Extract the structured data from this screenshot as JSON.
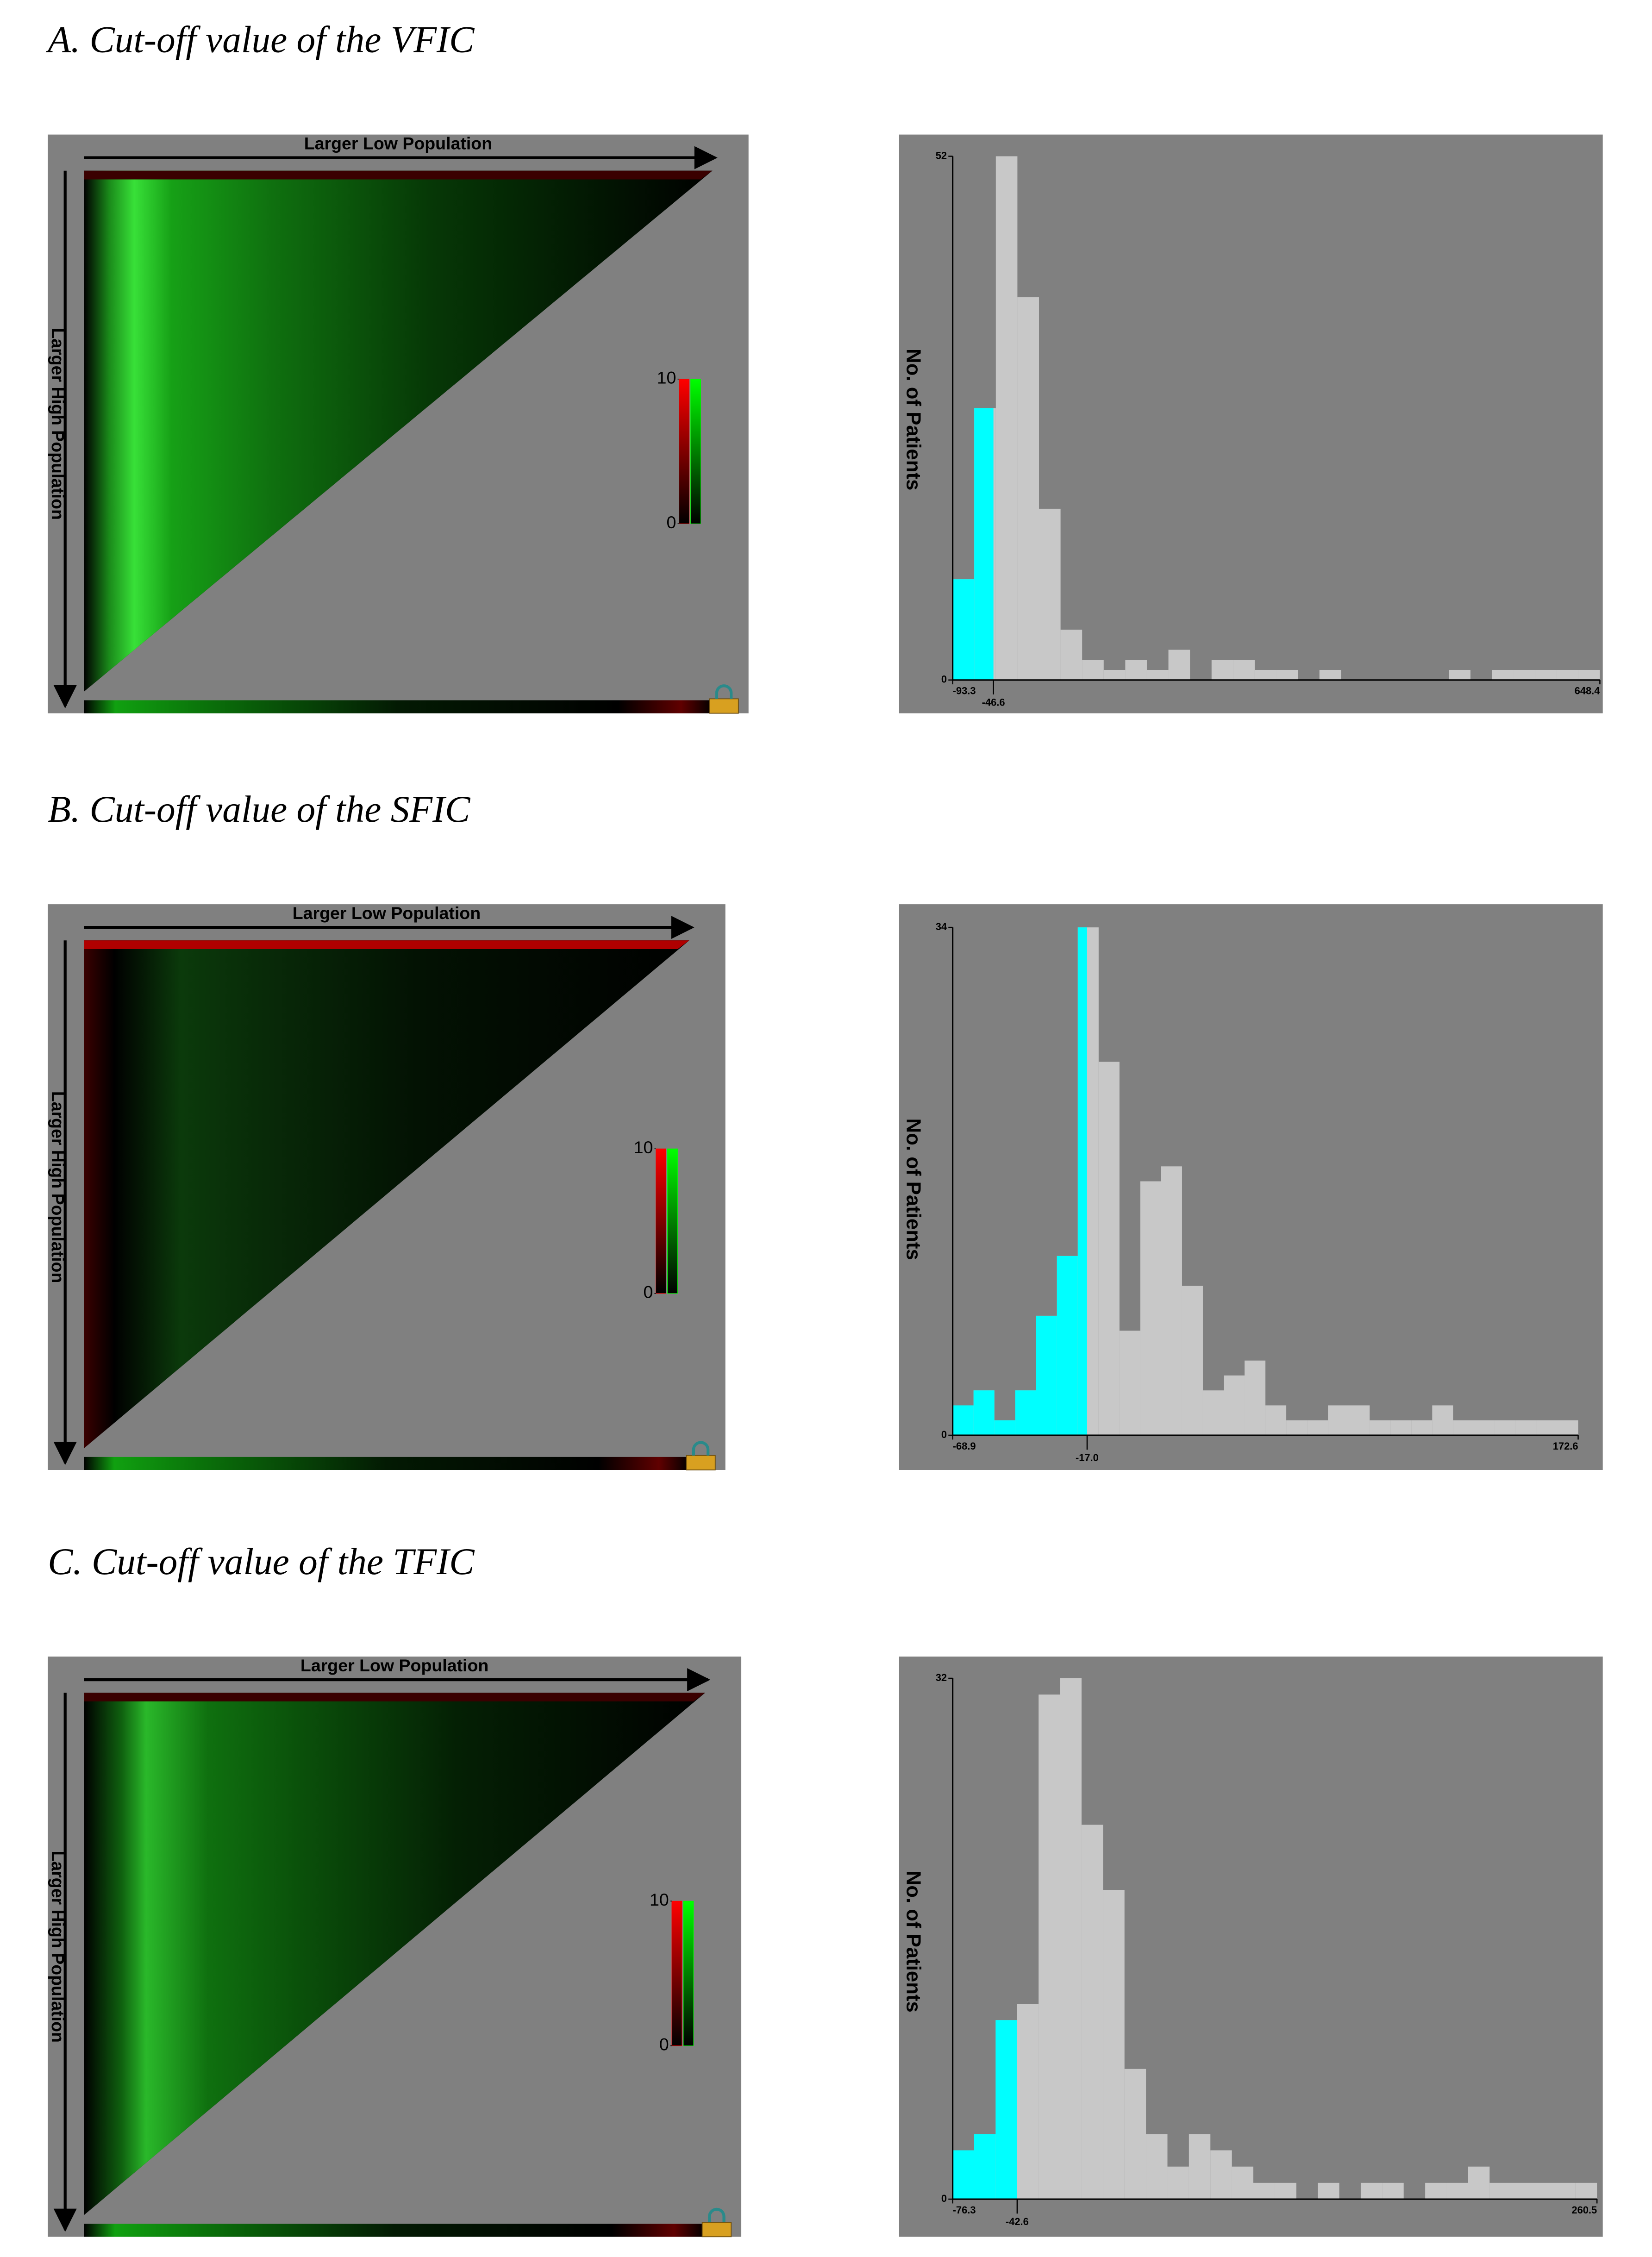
{
  "chart_data": [
    {
      "type": "heatmap",
      "title": "A. Cut-off value of the VFIC",
      "x_label": "Larger Low Population",
      "y_label": "Larger High Population",
      "clim": [
        0,
        10
      ],
      "colorbar_ticks": [
        0,
        10
      ],
      "colors": [
        "#ff0000",
        "#00ff00"
      ]
    },
    {
      "type": "histogram",
      "y_label": "No. of Patients",
      "color": "#c8c8c8",
      "highlight_color": "#00ffff",
      "cutoff": -46.6,
      "xlim": [
        -93.3,
        648.4
      ],
      "xticks": [
        -93.3,
        -46.6,
        648.4
      ],
      "ylim": [
        0,
        52
      ],
      "yticks": [
        0,
        52
      ],
      "bins": [
        -93.3,
        -68.58,
        -43.86,
        -19.13,
        5.59,
        30.32,
        55.04,
        79.76,
        104.49,
        129.21,
        153.93,
        178.66,
        203.38,
        228.1,
        252.83,
        277.55,
        302.27,
        327.0,
        351.72,
        376.44,
        401.17,
        425.89,
        450.61,
        475.34,
        500.06,
        524.78,
        549.51,
        574.23,
        598.95,
        623.68,
        648.4
      ],
      "values": [
        10,
        27,
        52,
        38,
        17,
        5,
        2,
        1,
        2,
        1,
        3,
        0,
        2,
        2,
        1,
        1,
        0,
        1,
        0,
        0,
        0,
        0,
        0,
        1,
        0,
        1,
        1,
        1,
        1,
        1
      ]
    },
    {
      "type": "heatmap",
      "title": "B. Cut-off value of the SFIC",
      "x_label": "Larger Low Population",
      "y_label": "Larger High Population",
      "clim": [
        0,
        10
      ],
      "colorbar_ticks": [
        0,
        10
      ],
      "colors": [
        "#ff0000",
        "#00ff00"
      ]
    },
    {
      "type": "histogram",
      "y_label": "No. of Patients",
      "color": "#c8c8c8",
      "highlight_color": "#00ffff",
      "cutoff": -17.0,
      "xlim": [
        -68.9,
        172.6
      ],
      "xticks": [
        {
          "value": -68.9,
          "label": "-68.9"
        },
        {
          "value": -17.0,
          "label": "-17.0"
        },
        {
          "value": 172.6,
          "label": "172.6"
        }
      ],
      "ylim": [
        0,
        34
      ],
      "yticks": [
        0,
        34
      ],
      "bins": [
        -68.9,
        -60.85,
        -52.8,
        -44.75,
        -36.7,
        -28.65,
        -20.6,
        -12.55,
        -4.5,
        3.55,
        11.6,
        19.65,
        27.7,
        35.75,
        43.8,
        51.85,
        59.9,
        67.95,
        76.0,
        84.05,
        92.1,
        100.15,
        108.2,
        116.25,
        124.3,
        132.35,
        140.4,
        148.45,
        156.5,
        164.55,
        172.6
      ],
      "values": [
        2,
        3,
        1,
        3,
        8,
        12,
        34,
        25,
        7,
        17,
        18,
        10,
        3,
        4,
        5,
        2,
        1,
        1,
        2,
        2,
        1,
        1,
        1,
        2,
        1,
        1,
        1,
        1,
        1,
        1
      ]
    },
    {
      "type": "heatmap",
      "title": "C. Cut-off value of the TFIC",
      "x_label": "Larger Low Population",
      "y_label": "Larger High Population",
      "clim": [
        0,
        10
      ],
      "colorbar_ticks": [
        0,
        10
      ],
      "colors": [
        "#ff0000",
        "#00ff00"
      ]
    },
    {
      "type": "histogram",
      "y_label": "No. of Patients",
      "color": "#c8c8c8",
      "highlight_color": "#00ffff",
      "cutoff": -42.6,
      "xlim": [
        -76.3,
        260.5
      ],
      "xticks": [
        -76.3,
        -42.6,
        260.5
      ],
      "ylim": [
        0,
        32
      ],
      "yticks": [
        0,
        32
      ],
      "bins": [
        -76.3,
        -65.07,
        -53.85,
        -42.62,
        -31.39,
        -20.17,
        -8.94,
        2.29,
        13.51,
        24.74,
        35.97,
        47.19,
        58.42,
        69.65,
        80.87,
        92.1,
        103.33,
        114.55,
        125.78,
        137.01,
        148.23,
        159.46,
        170.69,
        181.91,
        193.14,
        204.37,
        215.59,
        226.82,
        238.05,
        249.27,
        260.5
      ],
      "values": [
        3,
        4,
        11,
        12,
        31,
        32,
        23,
        19,
        8,
        4,
        2,
        4,
        3,
        2,
        1,
        1,
        0,
        1,
        0,
        1,
        1,
        0,
        1,
        1,
        2,
        1,
        1,
        1,
        1,
        1
      ]
    }
  ]
}
